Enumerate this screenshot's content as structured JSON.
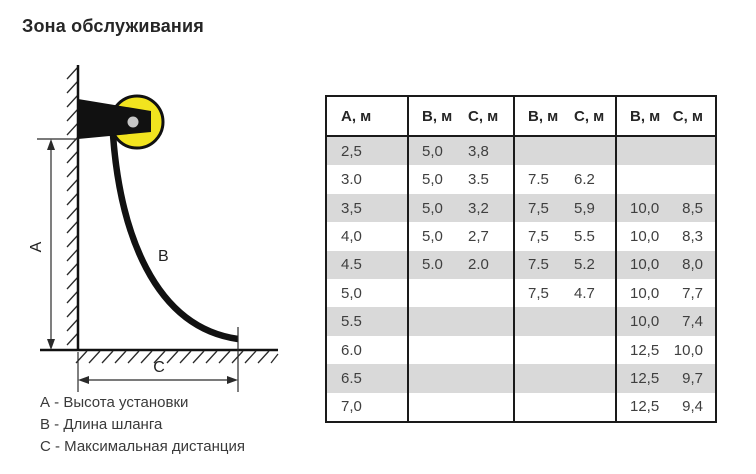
{
  "title": "Зона обслуживания",
  "colors": {
    "reel_yellow": "#f2e41f",
    "row_shade": "#d9d9d9",
    "table_border": "#1a1a1a"
  },
  "diagram": {
    "label_a": "А",
    "label_b": "В",
    "label_c": "С"
  },
  "legend": {
    "items": [
      "А - Высота установки",
      "В - Длина шланга",
      "С - Максимальная дистанция"
    ]
  },
  "table": {
    "headers": [
      "А, м",
      "В, м",
      "С, м",
      "В, м",
      "С, м",
      "В, м",
      "С, м"
    ],
    "shaded_rows": [
      0,
      2,
      4,
      6,
      8
    ],
    "rows": [
      [
        "2,5",
        "5,0",
        "3,8",
        "",
        "",
        "",
        ""
      ],
      [
        "3.0",
        "5,0",
        "3.5",
        "7.5",
        "6.2",
        "",
        ""
      ],
      [
        "3,5",
        "5,0",
        "3,2",
        "7,5",
        "5,9",
        "10,0",
        "8,5"
      ],
      [
        "4,0",
        "5,0",
        "2,7",
        "7,5",
        "5.5",
        "10,0",
        "8,3"
      ],
      [
        "4.5",
        "5.0",
        "2.0",
        "7.5",
        "5.2",
        "10,0",
        "8,0"
      ],
      [
        "5,0",
        "",
        "",
        "7,5",
        "4.7",
        "10,0",
        "7,7"
      ],
      [
        "5.5",
        "",
        "",
        "",
        "",
        "10,0",
        "7,4"
      ],
      [
        "6.0",
        "",
        "",
        "",
        "",
        "12,5",
        "10,0"
      ],
      [
        "6.5",
        "",
        "",
        "",
        "",
        "12,5",
        "9,7"
      ],
      [
        "7,0",
        "",
        "",
        "",
        "",
        "12,5",
        "9,4"
      ]
    ]
  }
}
